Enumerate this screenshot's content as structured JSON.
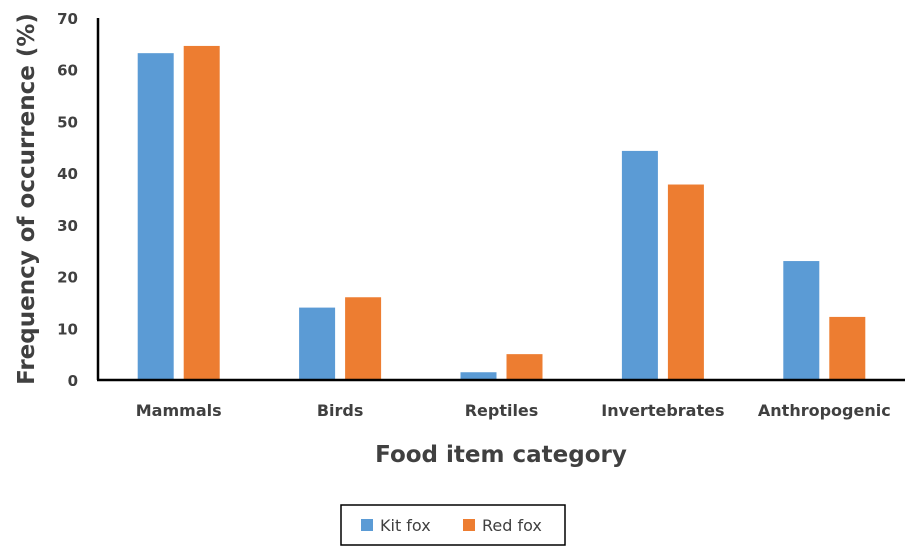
{
  "chart_data": {
    "type": "bar",
    "title": "",
    "xlabel": "Food item category",
    "ylabel": "Frequency of occurrence (%)",
    "ylim": [
      0,
      70
    ],
    "yticks": [
      0,
      10,
      20,
      30,
      40,
      50,
      60,
      70
    ],
    "grid": false,
    "legend_position": "bottom",
    "categories": [
      "Mammals",
      "Birds",
      "Reptiles",
      "Invertebrates",
      "Anthropogenic"
    ],
    "series": [
      {
        "name": "Kit fox",
        "color": "#5B9BD5",
        "values": [
          63.2,
          14.0,
          1.5,
          44.3,
          23.0
        ]
      },
      {
        "name": "Red fox",
        "color": "#ED7D31",
        "values": [
          64.6,
          16.0,
          5.0,
          37.8,
          12.2
        ]
      }
    ]
  }
}
